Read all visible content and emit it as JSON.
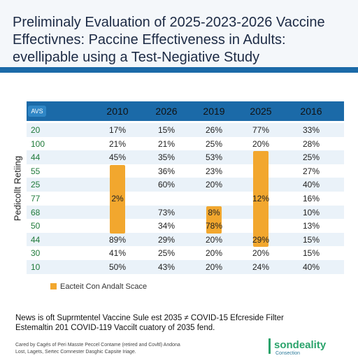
{
  "header": {
    "title_lines": [
      "Preliminaly Evaluation of 2025-2023-2026 Vaccine",
      "Effectivnes: Paccine Effectiveness in Adults:",
      "evellipable using a Test-Negiative Study"
    ]
  },
  "side_label": "Pedicollt Retiing",
  "table": {
    "corner": "AVS",
    "columns": [
      "2010",
      "2026",
      "2019",
      "2025",
      "2016"
    ],
    "rows": [
      [
        "20",
        "17%",
        "15%",
        "26%",
        "77%",
        "33%"
      ],
      [
        "100",
        "21%",
        "21%",
        "25%",
        "20%",
        "28%"
      ],
      [
        "44",
        "45%",
        "35%",
        "53%",
        null,
        "25%"
      ],
      [
        "55",
        null,
        "36%",
        "23%",
        null,
        "27%"
      ],
      [
        "25",
        null,
        "60%",
        "20%",
        null,
        "40%"
      ],
      [
        "77",
        "2%",
        null,
        null,
        "12%",
        "16%"
      ],
      [
        "68",
        null,
        "73%",
        "8%",
        null,
        "10%"
      ],
      [
        "50",
        null,
        "34%",
        "78%",
        null,
        "13%"
      ],
      [
        "44",
        "89%",
        "29%",
        "20%",
        "29%",
        "15%"
      ],
      [
        "30",
        "41%",
        "25%",
        "20%",
        "20%",
        "15%"
      ],
      [
        "10",
        "50%",
        "43%",
        "20%",
        "24%",
        "40%"
      ]
    ]
  },
  "legend": "Eacteit Con Andalt Scace",
  "footnote": [
    "News is oft Suprmtentel Vaccine Sule est 2035 ≠ COVID-15 Efcreside Filter",
    "Estemaltin 201 COVID-119 Vaccilt cuatory of 2035 fend."
  ],
  "credits": [
    "Cared by Cagés of Peri Masste Peccel Contame (retired and Covltl) Andona",
    "Lost, Lagets, Sertec Comnester Dasghic Capsite Iriage."
  ],
  "logo": {
    "name": "sondeality",
    "tagline": "Consection"
  }
}
